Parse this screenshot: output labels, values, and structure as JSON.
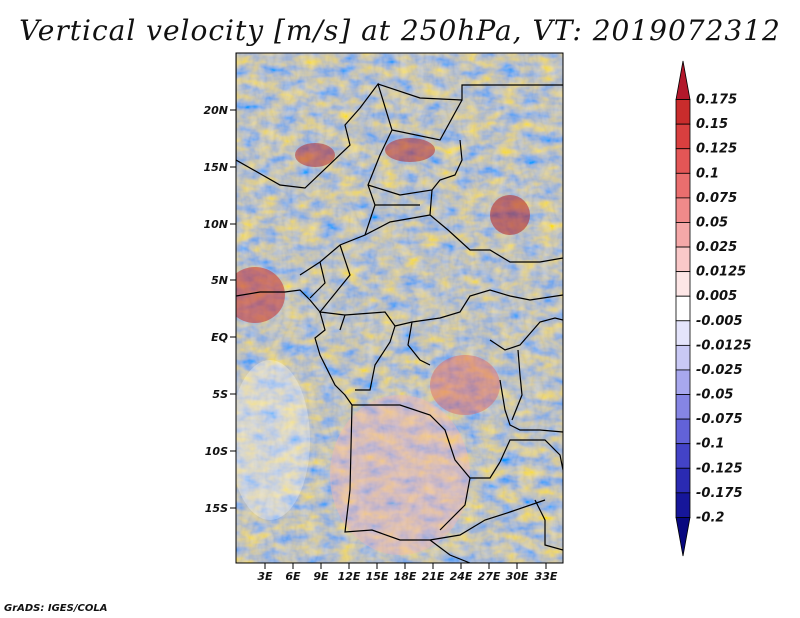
{
  "title": "Vertical velocity [m/s] at 250hPa, VT: 2019072312",
  "credit": "GrADS: IGES/COLA",
  "map": {
    "lat_labels": [
      "20N",
      "15N",
      "10N",
      "5N",
      "EQ",
      "5S",
      "10S",
      "15S"
    ],
    "lon_labels": [
      "3E",
      "6E",
      "9E",
      "12E",
      "15E",
      "18E",
      "21E",
      "24E",
      "27E",
      "30E",
      "33E"
    ]
  },
  "colorbar": {
    "levels": [
      "0.175",
      "0.15",
      "0.125",
      "0.1",
      "0.075",
      "0.05",
      "0.025",
      "0.0125",
      "0.005",
      "-0.005",
      "-0.0125",
      "-0.025",
      "-0.05",
      "-0.075",
      "-0.1",
      "-0.125",
      "-0.175",
      "-0.2"
    ],
    "colors": [
      "#b2182b",
      "#c92c2c",
      "#d93f3f",
      "#e35656",
      "#ea6e6e",
      "#f08a8a",
      "#f5a8a8",
      "#f9c8c8",
      "#fde6e6",
      "#ffffff",
      "#e4e4fb",
      "#c9c9f5",
      "#a8a8ee",
      "#8585e4",
      "#6262d8",
      "#4343c7",
      "#2a2ab2",
      "#16169a",
      "#08087f"
    ]
  }
}
